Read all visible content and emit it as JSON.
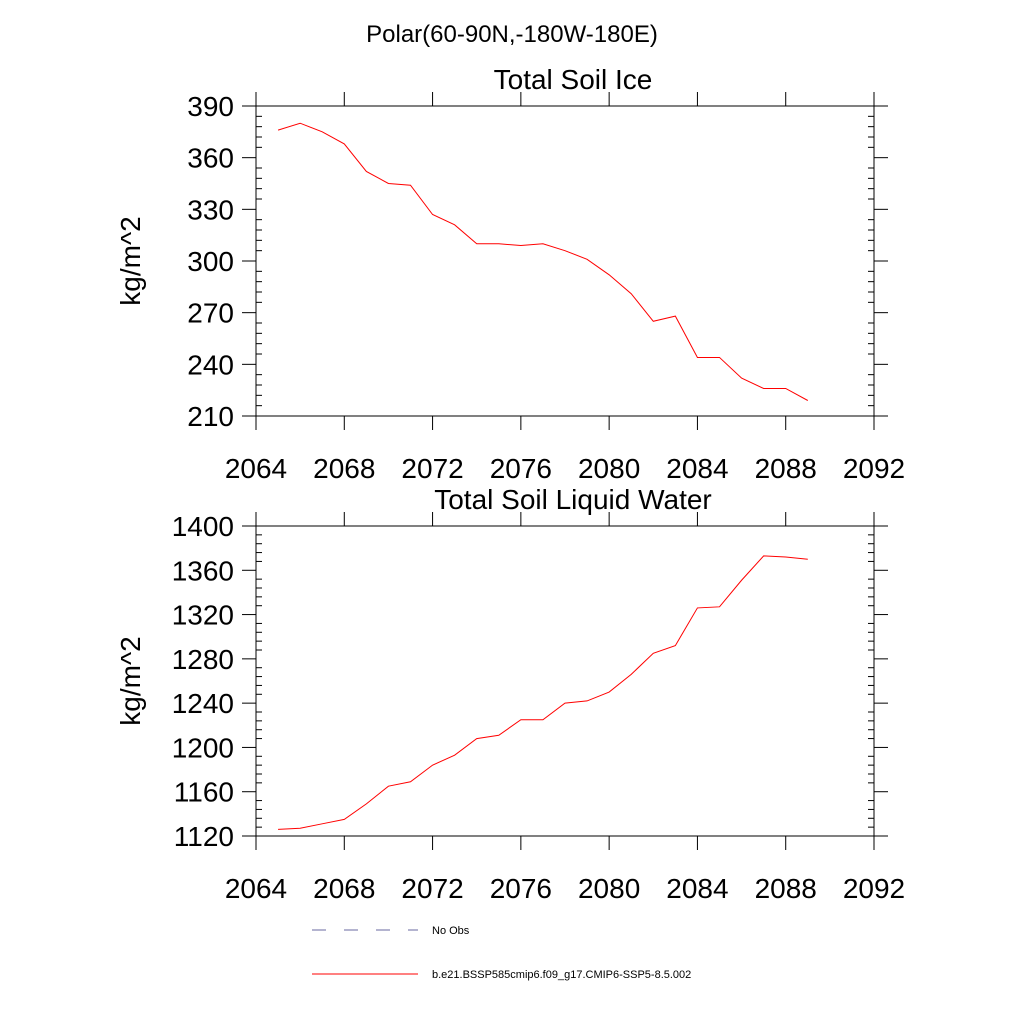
{
  "figure": {
    "suptitle": "Polar(60-90N,-180W-180E)"
  },
  "chart_data": [
    {
      "type": "line",
      "title": "Total Soil Ice",
      "xlabel": "",
      "ylabel": "kg/m^2",
      "xlim": [
        2064,
        2092
      ],
      "ylim": [
        210,
        390
      ],
      "xticks": [
        2064,
        2068,
        2072,
        2076,
        2080,
        2084,
        2088,
        2092
      ],
      "yticks": [
        210,
        240,
        270,
        300,
        330,
        360,
        390
      ],
      "grid": false,
      "x": [
        2065,
        2066,
        2067,
        2068,
        2069,
        2070,
        2071,
        2072,
        2073,
        2074,
        2075,
        2076,
        2077,
        2078,
        2079,
        2080,
        2081,
        2082,
        2083,
        2084,
        2085,
        2086,
        2087,
        2088,
        2089
      ],
      "series": [
        {
          "name": "b.e21.BSSP585cmip6.f09_g17.CMIP6-SSP5-8.5.002",
          "color": "#ff0000",
          "values": [
            376,
            380,
            375,
            368,
            352,
            345,
            344,
            327,
            321,
            310,
            310,
            309,
            310,
            306,
            301,
            292,
            281,
            265,
            268,
            244,
            244,
            232,
            226,
            226,
            219
          ]
        }
      ]
    },
    {
      "type": "line",
      "title": "Total Soil Liquid Water",
      "xlabel": "",
      "ylabel": "kg/m^2",
      "xlim": [
        2064,
        2092
      ],
      "ylim": [
        1120,
        1400
      ],
      "xticks": [
        2064,
        2068,
        2072,
        2076,
        2080,
        2084,
        2088,
        2092
      ],
      "yticks": [
        1120,
        1160,
        1200,
        1240,
        1280,
        1320,
        1360,
        1400
      ],
      "grid": false,
      "x": [
        2065,
        2066,
        2067,
        2068,
        2069,
        2070,
        2071,
        2072,
        2073,
        2074,
        2075,
        2076,
        2077,
        2078,
        2079,
        2080,
        2081,
        2082,
        2083,
        2084,
        2085,
        2086,
        2087,
        2088,
        2089
      ],
      "series": [
        {
          "name": "b.e21.BSSP585cmip6.f09_g17.CMIP6-SSP5-8.5.002",
          "color": "#ff0000",
          "values": [
            1126,
            1127,
            1131,
            1135,
            1149,
            1165,
            1169,
            1184,
            1193,
            1208,
            1211,
            1225,
            1225,
            1240,
            1242,
            1250,
            1266,
            1285,
            1292,
            1326,
            1327,
            1351,
            1373,
            1372,
            1370
          ]
        }
      ]
    }
  ],
  "legend": {
    "placement": "bottom-center",
    "entries": [
      {
        "label": "No Obs",
        "color": "#6a6aa0",
        "style": "dashed"
      },
      {
        "label": "b.e21.BSSP585cmip6.f09_g17.CMIP6-SSP5-8.5.002",
        "color": "#ff0000",
        "style": "solid"
      }
    ]
  }
}
